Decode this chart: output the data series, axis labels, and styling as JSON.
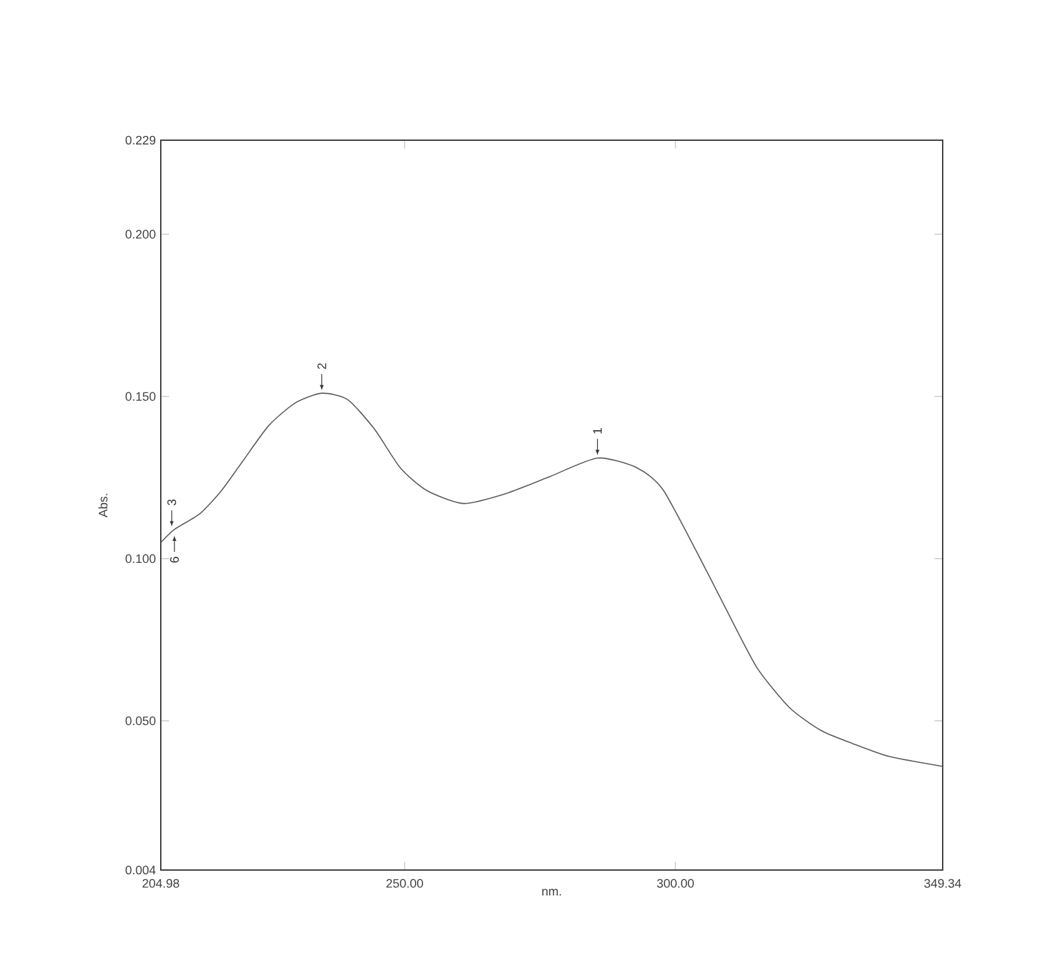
{
  "chart_data": {
    "type": "line",
    "xlabel": "nm.",
    "ylabel": "Abs.",
    "color": "#5a5a5a",
    "xlim": [
      204.98,
      349.34
    ],
    "ylim": [
      0.004,
      0.229
    ],
    "xticks": [
      204.98,
      {
        "value": 250,
        "label": "250.00"
      },
      {
        "value": 300,
        "label": "300.00"
      },
      349.34
    ],
    "yticks": [
      0.004,
      {
        "value": 0.05,
        "label": "0.050"
      },
      {
        "value": 0.1,
        "label": "0.100"
      },
      {
        "value": 0.15,
        "label": "0.150"
      },
      {
        "value": 0.2,
        "label": "0.200"
      },
      0.229
    ],
    "x": [
      205.0,
      207.5,
      212.3,
      216.2,
      220.1,
      224.9,
      229.8,
      234.7,
      239.5,
      244.4,
      249.2,
      254.1,
      260.9,
      268.6,
      276.4,
      285.6,
      292.9,
      297.8,
      305.5,
      310.4,
      315.2,
      321.1,
      326.9,
      332.7,
      339.5,
      349.2
    ],
    "values": [
      0.105,
      0.109,
      0.114,
      0.121,
      0.13,
      0.141,
      0.148,
      0.151,
      0.149,
      0.14,
      0.128,
      0.121,
      0.117,
      0.12,
      0.125,
      0.131,
      0.128,
      0.121,
      0.097,
      0.081,
      0.066,
      0.054,
      0.047,
      0.043,
      0.039,
      0.036
    ],
    "annotations": [
      {
        "text": "1",
        "x": 285.6,
        "y": 0.131
      },
      {
        "text": "2",
        "x": 234.7,
        "y": 0.151
      },
      {
        "text": "3",
        "x": 207.0,
        "y": 0.109
      },
      {
        "text": "6",
        "x": 207.5,
        "y": 0.108
      }
    ],
    "marker": "none"
  }
}
